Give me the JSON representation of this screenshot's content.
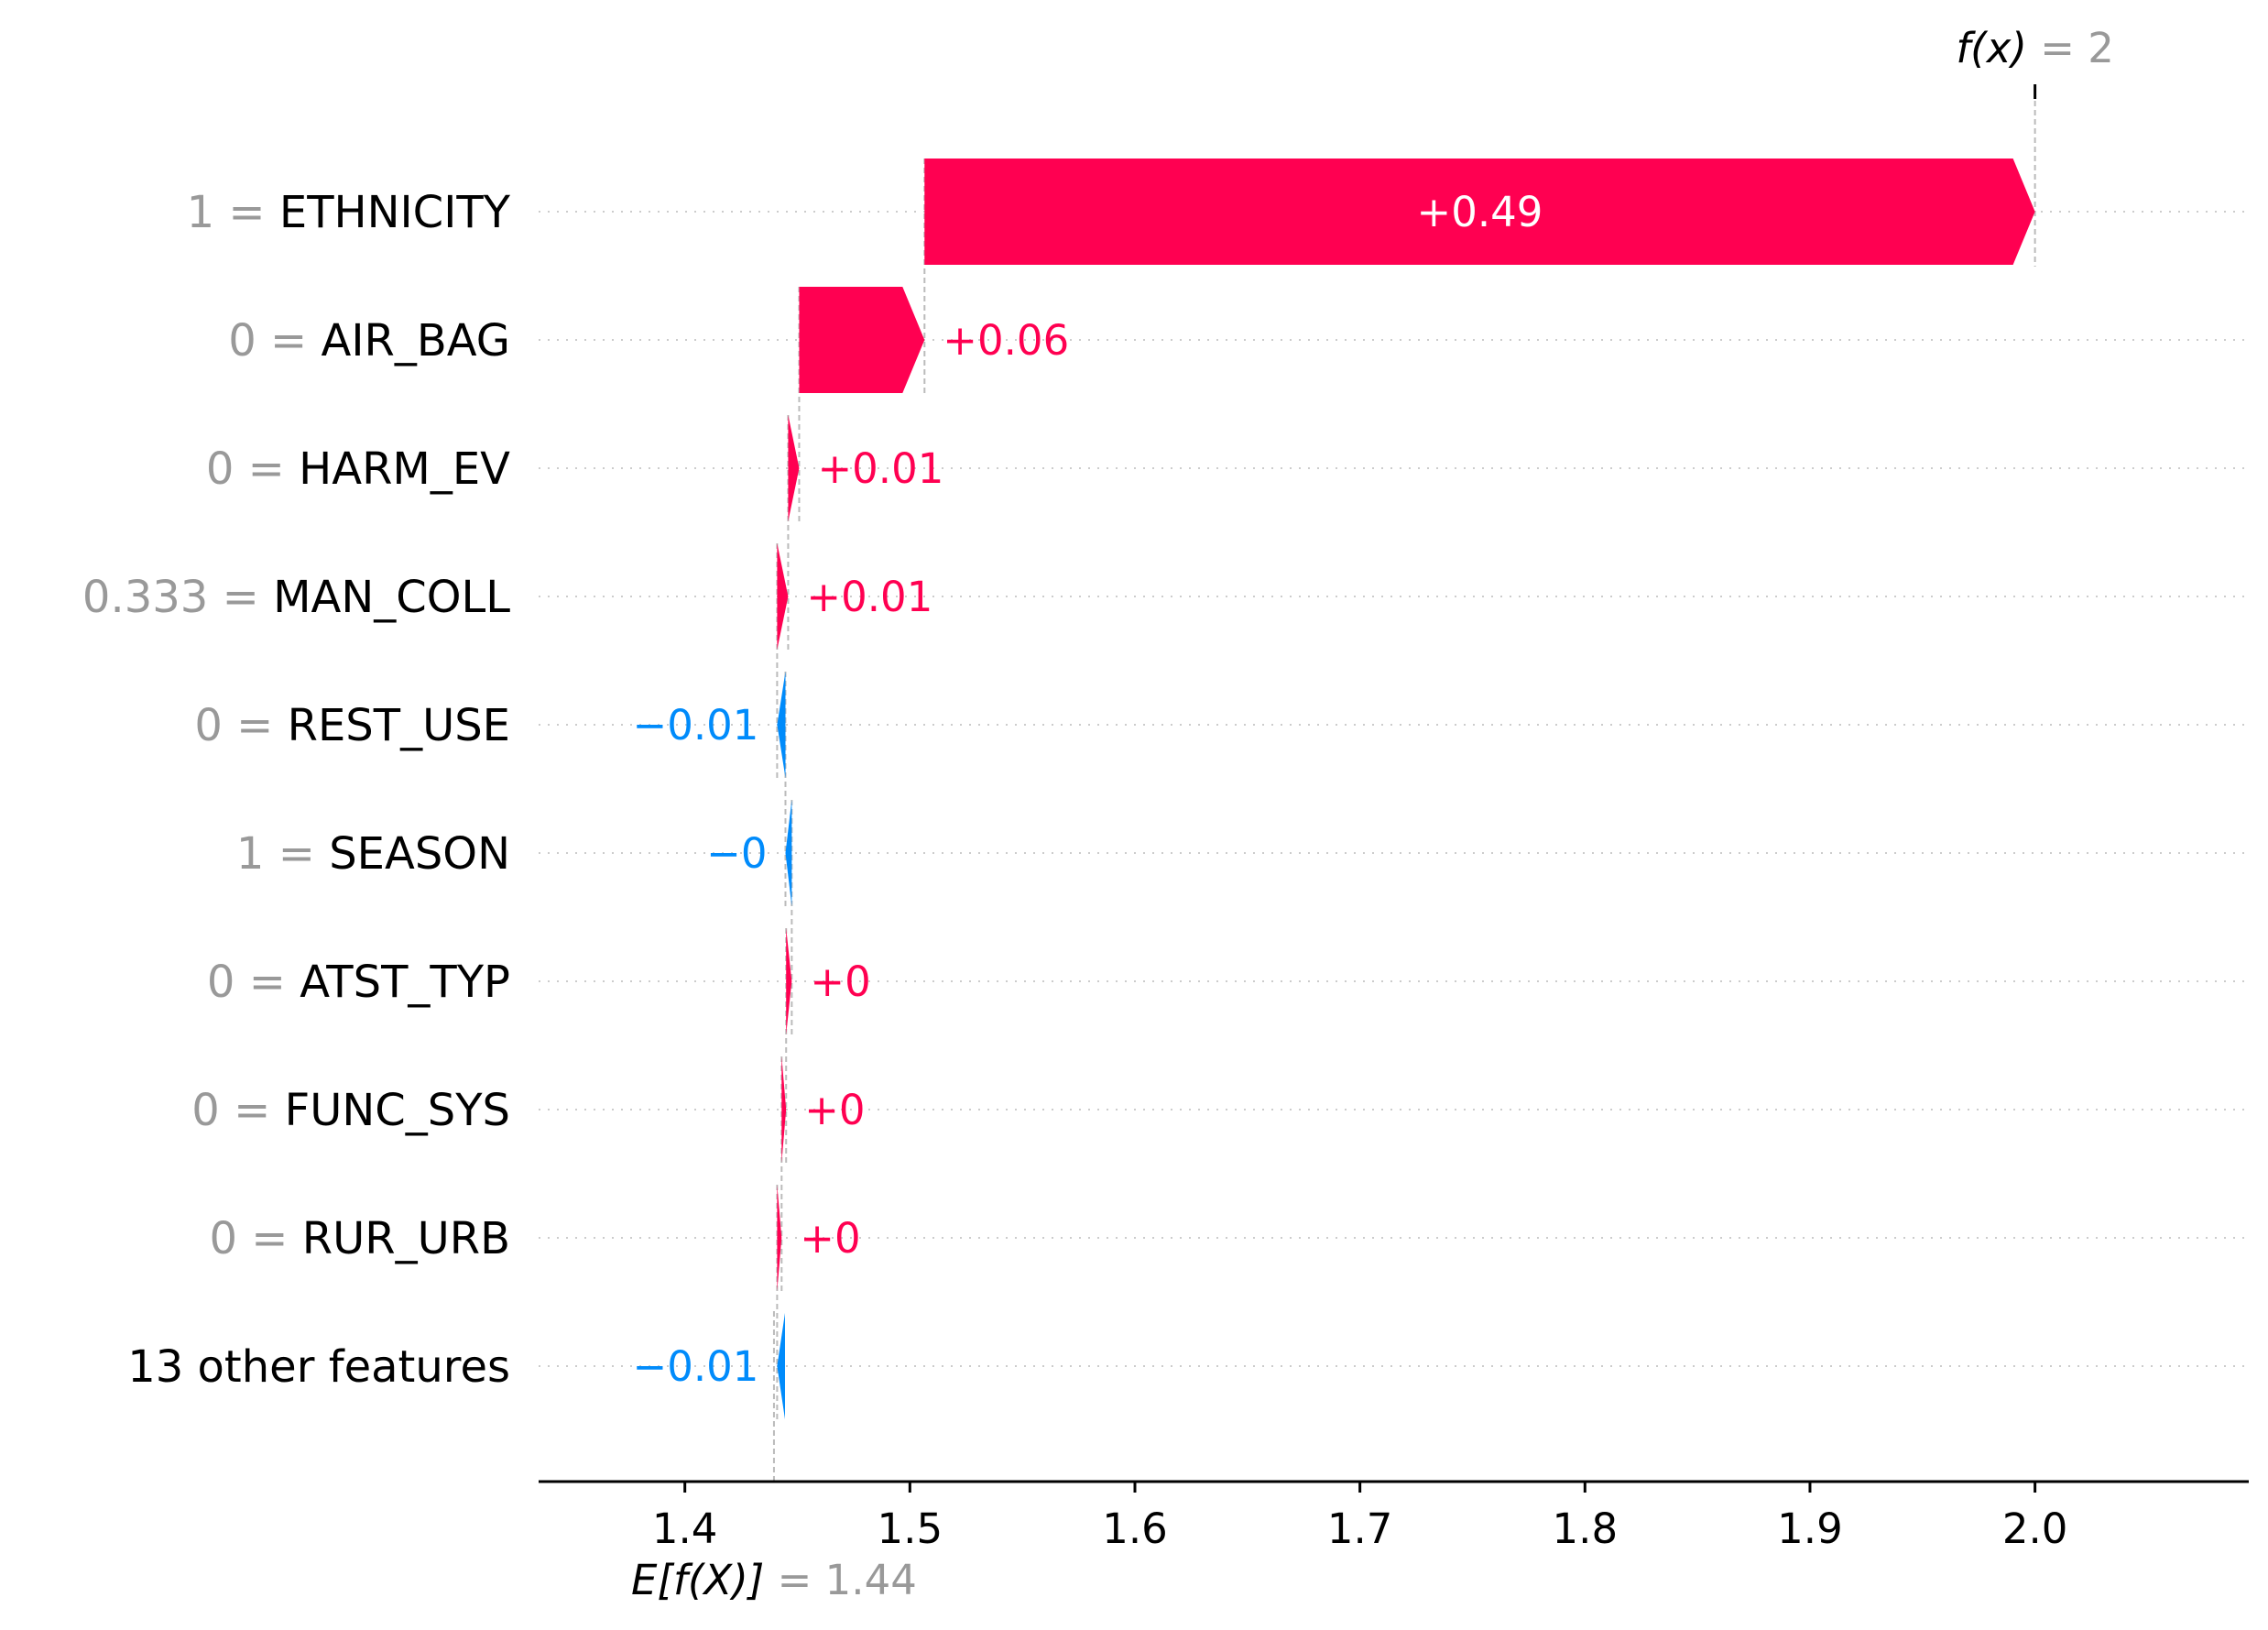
{
  "chart_data": {
    "type": "waterfall",
    "base_value": {
      "label": "E[f(X)]",
      "value_text": "1.44",
      "value": 1.4396
    },
    "output_value": {
      "label": "f(x)",
      "value_text": "2",
      "value": 2.0
    },
    "xlim": [
      1.335,
      2.095
    ],
    "xticks": [
      {
        "value": 1.4,
        "label": "1.4"
      },
      {
        "value": 1.5,
        "label": "1.5"
      },
      {
        "value": 1.6,
        "label": "1.6"
      },
      {
        "value": 1.7,
        "label": "1.7"
      },
      {
        "value": 1.8,
        "label": "1.8"
      },
      {
        "value": 1.9,
        "label": "1.9"
      },
      {
        "value": 2.0,
        "label": "2.0"
      }
    ],
    "features": [
      {
        "value_text": "1",
        "name": "ETHNICITY",
        "contribution": 0.4935,
        "label": "+0.49",
        "label_inside": true
      },
      {
        "value_text": "0",
        "name": "AIR_BAG",
        "contribution": 0.0557,
        "label": "+0.06",
        "label_inside": false
      },
      {
        "value_text": "0",
        "name": "HARM_EV",
        "contribution": 0.0049,
        "label": "+0.01",
        "label_inside": false
      },
      {
        "value_text": "0.333",
        "name": "MAN_COLL",
        "contribution": 0.0049,
        "label": "+0.01",
        "label_inside": false
      },
      {
        "value_text": "0",
        "name": "REST_USE",
        "contribution": -0.0037,
        "label": "−0.01",
        "label_inside": false
      },
      {
        "value_text": "1",
        "name": "SEASON",
        "contribution": -0.0028,
        "label": "−0",
        "label_inside": false
      },
      {
        "value_text": "0",
        "name": "ATST_TYP",
        "contribution": 0.0025,
        "label": "+0",
        "label_inside": false
      },
      {
        "value_text": "0",
        "name": "FUNC_SYS",
        "contribution": 0.002,
        "label": "+0",
        "label_inside": false
      },
      {
        "value_text": "0",
        "name": "RUR_URB",
        "contribution": 0.002,
        "label": "+0",
        "label_inside": false
      },
      {
        "value_text": "",
        "name": "13 other features",
        "contribution": -0.0035,
        "label": "−0.01",
        "label_inside": false
      }
    ],
    "colors": {
      "positive": "#ff0051",
      "negative": "#008bfb",
      "feature_value": "#999999",
      "feature_name": "#000000",
      "axis": "#000000",
      "grid": "#cccccc",
      "guide": "#bbbbbb",
      "inside_label": "#ffffff"
    },
    "grid": "dotted-rows",
    "legend": "none"
  }
}
